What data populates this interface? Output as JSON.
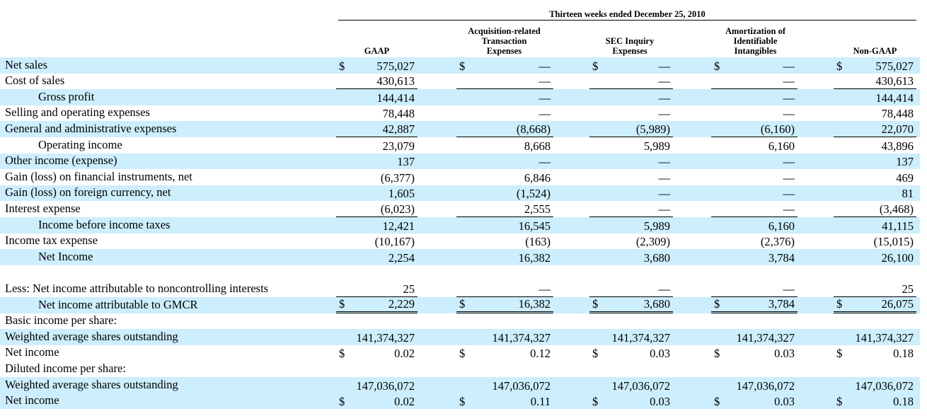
{
  "header": {
    "super_title": "Thirteen weeks ended December 25, 2010",
    "columns": [
      "GAAP",
      "Acquisition-related\nTransaction\nExpenses",
      "SEC Inquiry\nExpenses",
      "Amortization of\nIdentifiable\nIntangibles",
      "Non-GAAP"
    ]
  },
  "table": {
    "rows": [
      {
        "label": "Net sales",
        "cells": [
          {
            "sign": "$",
            "text": "575,027"
          },
          {
            "sign": "$",
            "text": "—"
          },
          {
            "sign": "$",
            "text": "—"
          },
          {
            "sign": "$",
            "text": "—"
          },
          {
            "sign": "$",
            "text": "575,027"
          }
        ]
      },
      {
        "label": "Cost of sales",
        "cells": [
          "430,613",
          "—",
          "—",
          "—",
          "430,613"
        ]
      },
      {
        "label": "Gross profit",
        "cells": [
          "144,414",
          "—",
          "—",
          "—",
          "144,414"
        ]
      },
      {
        "label": "Selling and operating expenses",
        "cells": [
          "78,448",
          "—",
          "—",
          "—",
          "78,448"
        ]
      },
      {
        "label": "General and administrative expenses",
        "cells": [
          "42,887",
          "(8,668)",
          "(5,989)",
          "(6,160)",
          "22,070"
        ]
      },
      {
        "label": "Operating income",
        "cells": [
          "23,079",
          "8,668",
          "5,989",
          "6,160",
          "43,896"
        ]
      },
      {
        "label": "Other income (expense)",
        "cells": [
          "137",
          "—",
          "—",
          "—",
          "137"
        ]
      },
      {
        "label": "Gain (loss) on financial instruments, net",
        "cells": [
          "(6,377)",
          "6,846",
          "—",
          "—",
          "469"
        ]
      },
      {
        "label": "Gain (loss) on foreign currency, net",
        "cells": [
          "1,605",
          "(1,524)",
          "—",
          "—",
          "81"
        ]
      },
      {
        "label": "Interest expense",
        "cells": [
          "(6,023)",
          "2,555",
          "—",
          "—",
          "(3,468)"
        ]
      },
      {
        "label": "Income before income taxes",
        "cells": [
          "12,421",
          "16,545",
          "5,989",
          "6,160",
          "41,115"
        ]
      },
      {
        "label": "Income tax expense",
        "cells": [
          "(10,167)",
          "(163)",
          "(2,309)",
          "(2,376)",
          "(15,015)"
        ]
      },
      {
        "label": "Net Income",
        "cells": [
          "2,254",
          "16,382",
          "3,680",
          "3,784",
          "26,100"
        ]
      },
      {
        "label": "Less: Net income attributable to noncontrolling interests",
        "cells": [
          "25",
          "—",
          "—",
          "—",
          "25"
        ]
      },
      {
        "label": "Net income attributable to GMCR",
        "cells": [
          {
            "sign": "$",
            "text": "2,229"
          },
          {
            "sign": "$",
            "text": "16,382"
          },
          {
            "sign": "$",
            "text": "3,680"
          },
          {
            "sign": "$",
            "text": "3,784"
          },
          {
            "sign": "$",
            "text": "26,075"
          }
        ]
      },
      {
        "label": "Basic income per share:",
        "cells": []
      },
      {
        "label": "Weighted average shares outstanding",
        "cells": [
          "141,374,327",
          "141,374,327",
          "141,374,327",
          "141,374,327",
          "141,374,327"
        ]
      },
      {
        "label": "Net income",
        "cells": [
          {
            "sign": "$",
            "text": "0.02"
          },
          {
            "sign": "$",
            "text": "0.12"
          },
          {
            "sign": "$",
            "text": "0.03"
          },
          {
            "sign": "$",
            "text": "0.03"
          },
          {
            "sign": "$",
            "text": "0.18"
          }
        ]
      },
      {
        "label": "Diluted income per share:",
        "cells": []
      },
      {
        "label": "Weighted average shares outstanding",
        "cells": [
          "147,036,072",
          "147,036,072",
          "147,036,072",
          "147,036,072",
          "147,036,072"
        ]
      },
      {
        "label": "Net income",
        "cells": [
          {
            "sign": "$",
            "text": "0.02"
          },
          {
            "sign": "$",
            "text": "0.11"
          },
          {
            "sign": "$",
            "text": "0.03"
          },
          {
            "sign": "$",
            "text": "0.03"
          },
          {
            "sign": "$",
            "text": "0.18"
          }
        ]
      }
    ]
  }
}
